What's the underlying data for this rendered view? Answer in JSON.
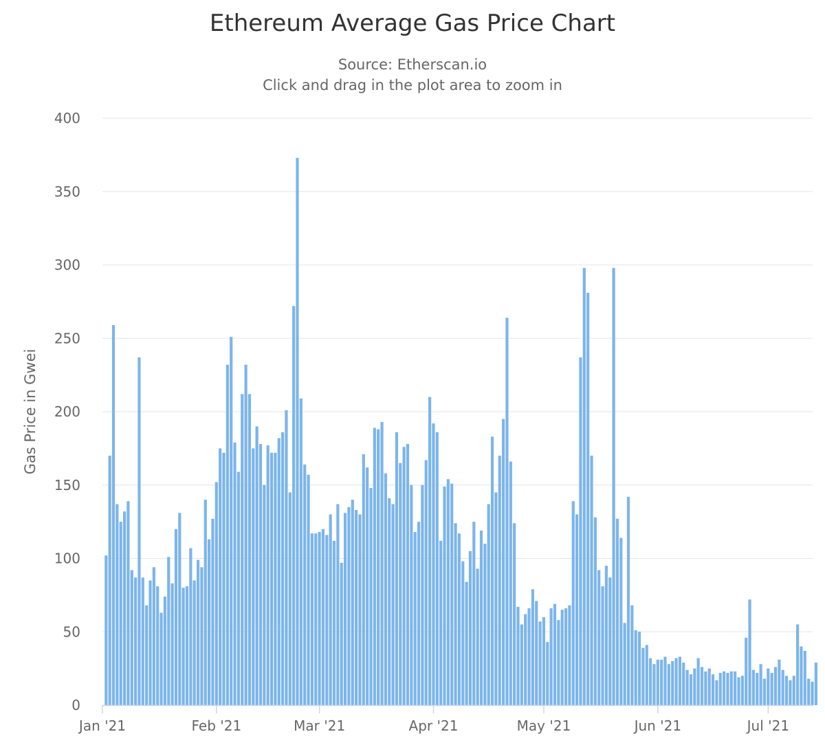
{
  "chart_data": {
    "type": "bar",
    "title": "Ethereum Average Gas Price Chart",
    "subtitle": "Source: Etherscan.io",
    "subtitle2": "Click and drag in the plot area to zoom in",
    "xlabel": "",
    "ylabel": "Gas Price in Gwei",
    "ylim": [
      0,
      400
    ],
    "y_ticks": [
      "0",
      "50",
      "100",
      "150",
      "200",
      "250",
      "300",
      "350",
      "400"
    ],
    "x_ticks": [
      "Jan '21",
      "Feb '21",
      "Mar '21",
      "Apr '21",
      "May '21",
      "Jun '21",
      "Jul '21"
    ],
    "grid": true,
    "legend": "none",
    "bar_color": "#7cb5ec",
    "daily_values_by_month": [
      {
        "month": "2021-01",
        "values": [
          102,
          170,
          259,
          137,
          125,
          132,
          139,
          92,
          87,
          237,
          87,
          68,
          85,
          94,
          81,
          63,
          74,
          101,
          83,
          120,
          131,
          80,
          81,
          107,
          85,
          99,
          94,
          140,
          113,
          127,
          152
        ]
      },
      {
        "month": "2021-02",
        "values": [
          175,
          172,
          232,
          251,
          179,
          159,
          212,
          232,
          212,
          175,
          190,
          178,
          150,
          177,
          172,
          172,
          182,
          186,
          201,
          145,
          272,
          373,
          209,
          164,
          157,
          117,
          117,
          118
        ]
      },
      {
        "month": "2021-03",
        "values": [
          120,
          116,
          130,
          112,
          137,
          97,
          131,
          135,
          140,
          133,
          130,
          171,
          162,
          148,
          189,
          188,
          193,
          158,
          141,
          137,
          186,
          165,
          176,
          178,
          150,
          118,
          125,
          150,
          167,
          210,
          192
        ]
      },
      {
        "month": "2021-04",
        "values": [
          186,
          112,
          149,
          154,
          151,
          124,
          117,
          98,
          84,
          105,
          125,
          93,
          119,
          110,
          137,
          183,
          145,
          170,
          195,
          264,
          166,
          124,
          67,
          55,
          62,
          66,
          79,
          71,
          57,
          60
        ]
      },
      {
        "month": "2021-05",
        "values": [
          43,
          66,
          69,
          58,
          65,
          66,
          68,
          139,
          130,
          237,
          298,
          281,
          170,
          128,
          92,
          81,
          95,
          87,
          298,
          127,
          114,
          56,
          142,
          68,
          51,
          50,
          39,
          41,
          32,
          28,
          31
        ]
      },
      {
        "month": "2021-06",
        "values": [
          31,
          33,
          28,
          30,
          32,
          33,
          29,
          24,
          21,
          25,
          32,
          26,
          23,
          25,
          21,
          17,
          22,
          23,
          22,
          23,
          23,
          19,
          20,
          46,
          72,
          24,
          22,
          28,
          18,
          25
        ]
      },
      {
        "month": "2021-07",
        "values": [
          22,
          26,
          31,
          24,
          20,
          17,
          20,
          55,
          40,
          37,
          18,
          16,
          29
        ]
      }
    ]
  }
}
